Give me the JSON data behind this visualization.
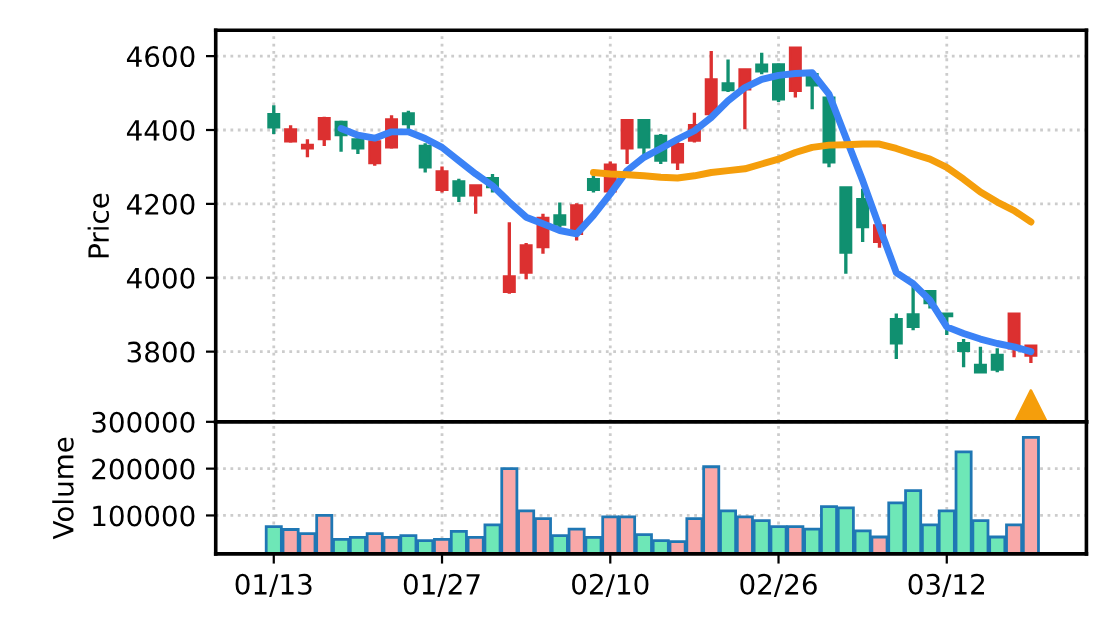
{
  "chart_data": [
    {
      "type": "candlestick",
      "ylabel": "Price",
      "grid": true,
      "tick_labels": "y",
      "ylim": [
        3610,
        4670
      ],
      "yticks": [
        3800,
        4000,
        4200,
        4400,
        4600
      ],
      "categories": [
        null,
        null,
        null,
        null,
        null,
        null,
        null,
        null,
        null,
        null,
        null,
        null,
        null,
        null,
        null,
        null,
        null,
        null,
        null,
        null,
        null,
        null,
        null,
        null,
        null,
        null,
        null,
        null,
        null,
        null,
        null,
        null,
        null,
        null,
        null,
        null,
        null,
        null,
        null,
        null,
        null,
        null,
        null,
        null,
        null,
        null
      ],
      "ohlc": [
        [
          4443,
          4467,
          4389,
          4407
        ],
        [
          4369,
          4413,
          4366,
          4402
        ],
        [
          4350,
          4375,
          4326,
          4360
        ],
        [
          4375,
          4436,
          4357,
          4432
        ],
        [
          4422,
          4425,
          4341,
          4386
        ],
        [
          4375,
          4386,
          4335,
          4350
        ],
        [
          4310,
          4375,
          4303,
          4369
        ],
        [
          4353,
          4440,
          4350,
          4429
        ],
        [
          4445,
          4452,
          4398,
          4416
        ],
        [
          4357,
          4364,
          4285,
          4299
        ],
        [
          4238,
          4301,
          4231,
          4288
        ],
        [
          4261,
          4268,
          4205,
          4222
        ],
        [
          4223,
          4250,
          4173,
          4250
        ],
        [
          4270,
          4281,
          4231,
          4245
        ],
        [
          3962,
          4150,
          3957,
          4004
        ],
        [
          4014,
          4094,
          3996,
          4088
        ],
        [
          4083,
          4173,
          4065,
          4162
        ],
        [
          4169,
          4204,
          4137,
          4144
        ],
        [
          4119,
          4202,
          4101,
          4196
        ],
        [
          4267,
          4277,
          4231,
          4238
        ],
        [
          4234,
          4315,
          4231,
          4306
        ],
        [
          4350,
          4427,
          4308,
          4427
        ],
        [
          4427,
          4430,
          4326,
          4353
        ],
        [
          4384,
          4389,
          4308,
          4317
        ],
        [
          4312,
          4368,
          4292,
          4362
        ],
        [
          4371,
          4447,
          4366,
          4413
        ],
        [
          4443,
          4614,
          4440,
          4537
        ],
        [
          4526,
          4591,
          4503,
          4508
        ],
        [
          4510,
          4564,
          4402,
          4564
        ],
        [
          4577,
          4609,
          4551,
          4559
        ],
        [
          4578,
          4580,
          4476,
          4483
        ],
        [
          4506,
          4625,
          4488,
          4623
        ],
        [
          4551,
          4560,
          4456,
          4521
        ],
        [
          4488,
          4490,
          4299,
          4312
        ],
        [
          4245,
          4245,
          4011,
          4068
        ],
        [
          4213,
          4241,
          4097,
          4137
        ],
        [
          4097,
          4142,
          4081,
          4142
        ],
        [
          3888,
          3903,
          3780,
          3822
        ],
        [
          3901,
          3975,
          3858,
          3867
        ],
        [
          3964,
          3967,
          3917,
          3931
        ],
        [
          3903,
          3903,
          3845,
          3896
        ],
        [
          3823,
          3834,
          3758,
          3802
        ],
        [
          3764,
          3813,
          3744,
          3744
        ],
        [
          3791,
          3809,
          3744,
          3751
        ],
        [
          3809,
          3903,
          3785,
          3903
        ],
        [
          3789,
          3816,
          3769,
          3816
        ]
      ],
      "colors": [
        "#109070",
        "#dc3030",
        "#dc3030",
        "#dc3030",
        "#109070",
        "#109070",
        "#dc3030",
        "#dc3030",
        "#109070",
        "#109070",
        "#dc3030",
        "#109070",
        "#dc3030",
        "#109070",
        "#dc3030",
        "#dc3030",
        "#dc3030",
        "#109070",
        "#dc3030",
        "#109070",
        "#dc3030",
        "#dc3030",
        "#109070",
        "#109070",
        "#dc3030",
        "#dc3030",
        "#dc3030",
        "#109070",
        "#dc3030",
        "#109070",
        "#109070",
        "#dc3030",
        "#109070",
        "#109070",
        "#109070",
        "#109070",
        "#dc3030",
        "#109070",
        "#109070",
        "#109070",
        "#109070",
        "#109070",
        "#109070",
        "#109070",
        "#dc3030",
        "#dc3030"
      ],
      "series": [
        {
          "type": "line",
          "color": "#3b82f6",
          "values": [
            null,
            null,
            null,
            null,
            4404,
            4386,
            4378,
            4395,
            4395,
            4377,
            4353,
            4317,
            4281,
            4249,
            4205,
            4164,
            4146,
            4128,
            4119,
            4169,
            4227,
            4290,
            4326,
            4350,
            4375,
            4398,
            4434,
            4479,
            4515,
            4537,
            4548,
            4553,
            4555,
            4497,
            4380,
            4263,
            4137,
            4014,
            3984,
            3939,
            3867,
            3849,
            3834,
            3822,
            3813,
            3800
          ]
        },
        {
          "type": "line",
          "color": "#f59e0b",
          "values": [
            null,
            null,
            null,
            null,
            null,
            null,
            null,
            null,
            null,
            null,
            null,
            null,
            null,
            null,
            null,
            null,
            null,
            null,
            null,
            4285,
            4281,
            4279,
            4276,
            4272,
            4270,
            4276,
            4285,
            4290,
            4295,
            4308,
            4321,
            4339,
            4353,
            4359,
            4360,
            4362,
            4362,
            4350,
            4335,
            4321,
            4299,
            4267,
            4232,
            4205,
            4182,
            4151
          ]
        },
        {
          "type": "scatter",
          "color": "#f59e0b",
          "marker": "triangle",
          "values": [
            null,
            null,
            null,
            null,
            null,
            null,
            null,
            null,
            null,
            null,
            null,
            null,
            null,
            null,
            null,
            null,
            null,
            null,
            null,
            null,
            null,
            null,
            null,
            null,
            null,
            null,
            null,
            null,
            null,
            null,
            null,
            null,
            null,
            null,
            null,
            null,
            null,
            null,
            null,
            null,
            null,
            null,
            null,
            null,
            null,
            3650
          ]
        }
      ]
    },
    {
      "type": "bar",
      "ylabel": "Volume",
      "grid": true,
      "ylim": [
        18000,
        300000
      ],
      "yticks": [
        100000,
        200000,
        300000
      ],
      "categories": [
        "01/13",
        null,
        null,
        null,
        null,
        null,
        null,
        null,
        null,
        null,
        "01/27",
        null,
        null,
        null,
        null,
        null,
        null,
        null,
        null,
        null,
        "02/10",
        null,
        null,
        null,
        null,
        null,
        null,
        null,
        null,
        null,
        "02/26",
        null,
        null,
        null,
        null,
        null,
        null,
        null,
        null,
        null,
        "03/12",
        null,
        null,
        null,
        null,
        null
      ],
      "values": [
        76000,
        70000,
        61000,
        100000,
        49000,
        53000,
        61000,
        53000,
        57000,
        46000,
        49000,
        66000,
        53000,
        80000,
        200000,
        110000,
        93000,
        57000,
        71000,
        53000,
        97000,
        97000,
        59000,
        46000,
        44000,
        93000,
        204000,
        110000,
        97000,
        89000,
        76000,
        76000,
        71000,
        119000,
        116000,
        67000,
        54000,
        127000,
        153000,
        80000,
        110000,
        236000,
        89000,
        54000,
        80000,
        267000
      ],
      "colors": [
        "#6ee7b7",
        "#f9a8a8",
        "#f9a8a8",
        "#f9a8a8",
        "#6ee7b7",
        "#6ee7b7",
        "#f9a8a8",
        "#f9a8a8",
        "#6ee7b7",
        "#6ee7b7",
        "#f9a8a8",
        "#6ee7b7",
        "#f9a8a8",
        "#6ee7b7",
        "#f9a8a8",
        "#f9a8a8",
        "#f9a8a8",
        "#6ee7b7",
        "#f9a8a8",
        "#6ee7b7",
        "#f9a8a8",
        "#f9a8a8",
        "#6ee7b7",
        "#6ee7b7",
        "#f9a8a8",
        "#f9a8a8",
        "#f9a8a8",
        "#6ee7b7",
        "#f9a8a8",
        "#6ee7b7",
        "#6ee7b7",
        "#f9a8a8",
        "#6ee7b7",
        "#6ee7b7",
        "#6ee7b7",
        "#6ee7b7",
        "#f9a8a8",
        "#6ee7b7",
        "#6ee7b7",
        "#6ee7b7",
        "#6ee7b7",
        "#6ee7b7",
        "#6ee7b7",
        "#6ee7b7",
        "#f9a8a8",
        "#f9a8a8"
      ]
    }
  ]
}
